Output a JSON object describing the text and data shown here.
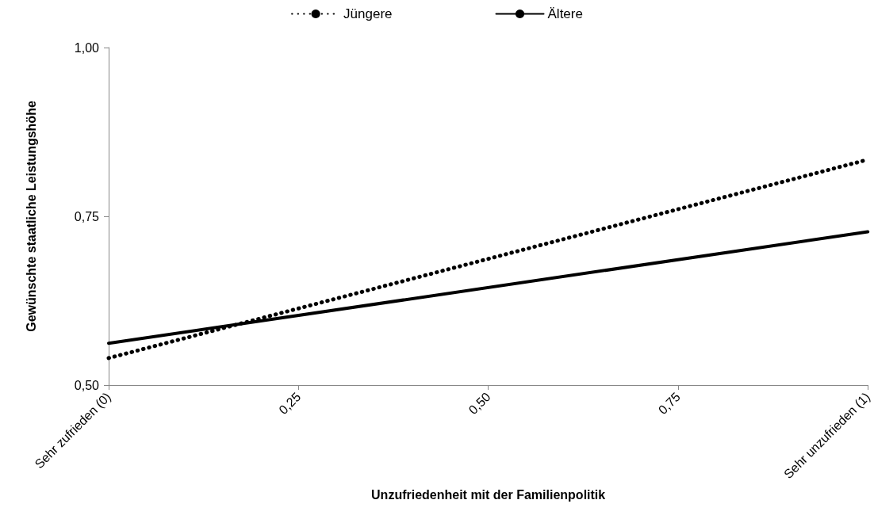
{
  "chart_data": {
    "type": "line",
    "xlabel": "Unzufriedenheit mit der Familienpolitik",
    "ylabel": "Gewünschte staatliche Leistungshöhe",
    "x": [
      0,
      1
    ],
    "series": [
      {
        "name": "Jüngere",
        "color": "#000000",
        "values": [
          0.54,
          0.834
        ],
        "line_style": "dotted"
      },
      {
        "name": "Ältere",
        "color": "#000000",
        "values": [
          0.562,
          0.727
        ],
        "line_style": "solid"
      }
    ],
    "xlim": [
      0,
      1
    ],
    "xticks": [
      {
        "value": 0,
        "label": "Sehr zufrieden (0)"
      },
      {
        "value": 0.25,
        "label": "0,25"
      },
      {
        "value": 0.5,
        "label": "0,50"
      },
      {
        "value": 0.75,
        "label": "0,75"
      },
      {
        "value": 1,
        "label": "Sehr unzufrieden (1)"
      }
    ],
    "ylim": [
      0.5,
      1
    ],
    "yticks": [
      {
        "value": 0.5,
        "label": "0,50"
      },
      {
        "value": 0.75,
        "label": "0,75"
      },
      {
        "value": 1,
        "label": "1,00"
      }
    ],
    "grid": false,
    "legend": "top",
    "marker": "none"
  }
}
